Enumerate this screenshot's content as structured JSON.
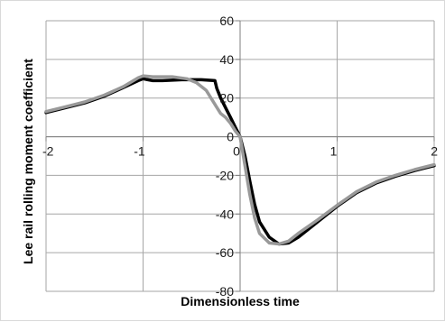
{
  "chart_data": {
    "type": "line",
    "title": "",
    "xlabel": "Dimensionless time",
    "ylabel": "Lee rail rolling moment coefficient",
    "xlim": [
      -2,
      2
    ],
    "ylim": [
      -80,
      60
    ],
    "x_ticks": [
      -2,
      -1,
      0,
      1,
      2
    ],
    "y_ticks": [
      60,
      40,
      20,
      0,
      -20,
      -40,
      -60,
      -80
    ],
    "x_tick_labels": [
      "-2",
      "-1",
      "0",
      "1",
      "2"
    ],
    "y_tick_labels": [
      "60",
      "40",
      "20",
      "0",
      "-20",
      "-40",
      "-60",
      "-80"
    ],
    "grid": true,
    "legend": "none",
    "series": [
      {
        "color": "#000000",
        "points": [
          [
            -2.0,
            12.5
          ],
          [
            -1.8,
            15
          ],
          [
            -1.6,
            17.5
          ],
          [
            -1.4,
            21
          ],
          [
            -1.2,
            25.5
          ],
          [
            -1.05,
            29
          ],
          [
            -1.0,
            30
          ],
          [
            -0.95,
            29.5
          ],
          [
            -0.9,
            29
          ],
          [
            -0.8,
            29
          ],
          [
            -0.6,
            29.5
          ],
          [
            -0.4,
            29.5
          ],
          [
            -0.26,
            29
          ],
          [
            -0.24,
            25
          ],
          [
            -0.2,
            20
          ],
          [
            -0.15,
            15
          ],
          [
            -0.1,
            10
          ],
          [
            -0.05,
            5
          ],
          [
            0.0,
            0
          ],
          [
            0.05,
            -10
          ],
          [
            0.1,
            -23
          ],
          [
            0.15,
            -35
          ],
          [
            0.2,
            -44
          ],
          [
            0.3,
            -52
          ],
          [
            0.4,
            -55.5
          ],
          [
            0.5,
            -55
          ],
          [
            0.6,
            -52
          ],
          [
            0.8,
            -44
          ],
          [
            1.0,
            -36
          ],
          [
            1.2,
            -29
          ],
          [
            1.4,
            -24
          ],
          [
            1.6,
            -20.5
          ],
          [
            1.8,
            -17.5
          ],
          [
            2.0,
            -15
          ]
        ]
      },
      {
        "color": "#999999",
        "points": [
          [
            -2.0,
            13
          ],
          [
            -1.8,
            15.5
          ],
          [
            -1.6,
            18
          ],
          [
            -1.4,
            21.5
          ],
          [
            -1.2,
            26
          ],
          [
            -1.05,
            30.5
          ],
          [
            -1.0,
            31.5
          ],
          [
            -0.9,
            31
          ],
          [
            -0.7,
            31
          ],
          [
            -0.55,
            30
          ],
          [
            -0.45,
            28
          ],
          [
            -0.35,
            24
          ],
          [
            -0.25,
            16
          ],
          [
            -0.2,
            12
          ],
          [
            -0.15,
            10
          ],
          [
            -0.1,
            7
          ],
          [
            -0.05,
            3
          ],
          [
            0.0,
            0
          ],
          [
            0.05,
            -15
          ],
          [
            0.1,
            -30
          ],
          [
            0.15,
            -42
          ],
          [
            0.2,
            -50
          ],
          [
            0.3,
            -55
          ],
          [
            0.4,
            -55.5
          ],
          [
            0.5,
            -54
          ],
          [
            0.6,
            -50
          ],
          [
            0.8,
            -43
          ],
          [
            1.0,
            -35.5
          ],
          [
            1.2,
            -28.5
          ],
          [
            1.4,
            -23.5
          ],
          [
            1.6,
            -20
          ],
          [
            1.8,
            -17
          ],
          [
            2.0,
            -14.5
          ]
        ]
      }
    ]
  }
}
